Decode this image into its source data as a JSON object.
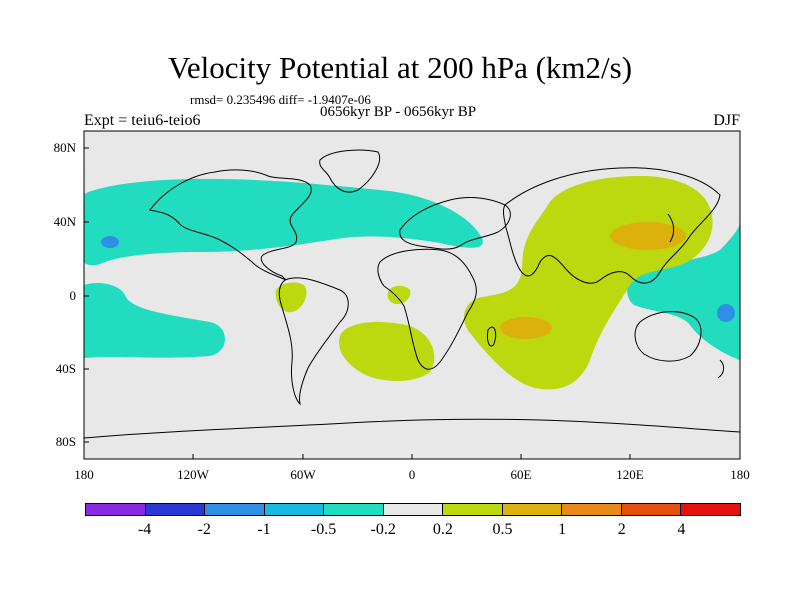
{
  "title": "Velocity Potential at 200 hPa (km2/s)",
  "stats": "rmsd= 0.235496 diff= -1.9407e-06",
  "subtitle": "0656kyr BP - 0656kyr BP",
  "experiment": "Expt = teiu6-teio6",
  "season": "DJF",
  "lat_labels": [
    "80N",
    "40N",
    "0",
    "40S",
    "80S"
  ],
  "lon_labels": [
    "180",
    "120W",
    "60W",
    "0",
    "60E",
    "120E",
    "180"
  ],
  "colorbar": {
    "colors": [
      "#8a2be2",
      "#2a38d6",
      "#2f8fe6",
      "#17bbe0",
      "#22dcc0",
      "#e8e8e8",
      "#bcd80f",
      "#dcb10b",
      "#e88a1a",
      "#e4500e",
      "#e3120f"
    ],
    "labels": [
      "-4",
      "-2",
      "-1",
      "-0.5",
      "-0.2",
      "0.2",
      "0.5",
      "1",
      "2",
      "4"
    ]
  },
  "map": {
    "background": "#e8e8e8",
    "neg_color": "#22dcc0",
    "neg2_color": "#2f8fe6",
    "pos_color": "#bcd80f",
    "pos2_color": "#dcb10b"
  }
}
